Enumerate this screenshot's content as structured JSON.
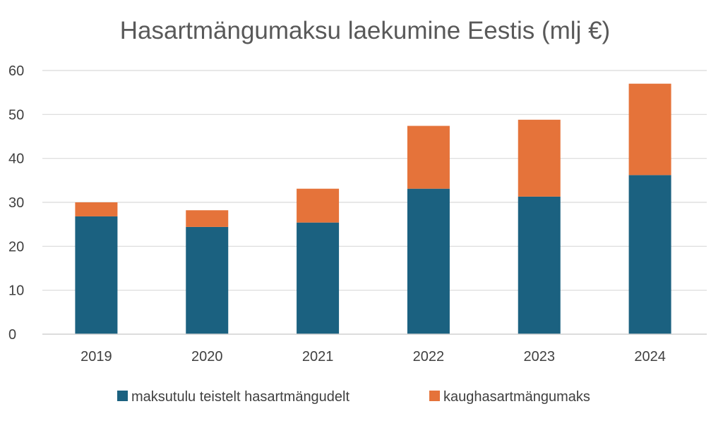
{
  "chart_data": {
    "type": "bar",
    "stacked": true,
    "title": "Hasartmängumaksu laekumine Eestis (mlj €)",
    "xlabel": "",
    "ylabel": "",
    "categories": [
      "2019",
      "2020",
      "2021",
      "2022",
      "2023",
      "2024"
    ],
    "ylim": [
      0,
      60
    ],
    "yticks": [
      "0",
      "10",
      "20",
      "30",
      "40",
      "50",
      "60"
    ],
    "grid": true,
    "legend_position": "bottom",
    "series": [
      {
        "name": "maksutulu teistelt hasartmängudelt",
        "color": "#1b6180",
        "values": [
          26.8,
          24.4,
          25.4,
          33.1,
          31.3,
          36.2
        ]
      },
      {
        "name": "kaughasartmängumaks",
        "color": "#e5733a",
        "values": [
          3.2,
          3.8,
          7.7,
          14.3,
          17.5,
          20.8
        ]
      }
    ]
  }
}
